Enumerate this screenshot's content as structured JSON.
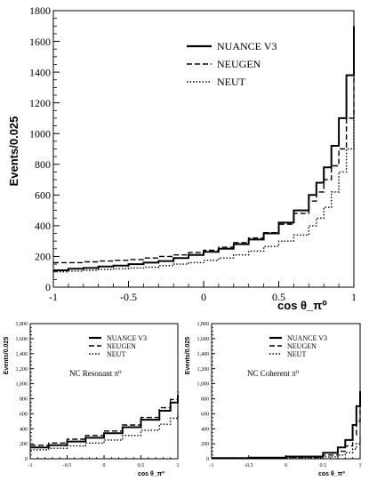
{
  "chart_data": [
    {
      "type": "line",
      "xlabel": "cos θ_π⁰",
      "ylabel": "Events/0.025",
      "xlim": [
        -1,
        1
      ],
      "ylim": [
        0,
        1800
      ],
      "xticks": [
        -1,
        -0.5,
        0,
        0.5,
        1
      ],
      "xtick_labels": [
        "-1",
        "-0.5",
        "0",
        "0.5",
        "1"
      ],
      "yticks": [
        0,
        200,
        400,
        600,
        800,
        1000,
        1200,
        1400,
        1600,
        1800
      ],
      "ytick_labels": [
        "0",
        "200",
        "400",
        "600",
        "800",
        "1000",
        "1200",
        "1400",
        "1600",
        "1800"
      ],
      "legend_position": "top-right",
      "series": [
        {
          "name": "NUANCE V3",
          "style": "solid",
          "color": "#000000",
          "x": [
            -1,
            -0.9,
            -0.8,
            -0.7,
            -0.6,
            -0.5,
            -0.4,
            -0.3,
            -0.2,
            -0.1,
            0,
            0.1,
            0.2,
            0.3,
            0.4,
            0.5,
            0.6,
            0.7,
            0.75,
            0.8,
            0.85,
            0.9,
            0.95,
            1
          ],
          "values": [
            110,
            120,
            125,
            135,
            140,
            150,
            160,
            170,
            190,
            210,
            230,
            250,
            280,
            310,
            350,
            420,
            500,
            600,
            680,
            780,
            920,
            1100,
            1380,
            1700
          ]
        },
        {
          "name": "NEUGEN",
          "style": "dashed",
          "color": "#000000",
          "x": [
            -1,
            -0.9,
            -0.8,
            -0.7,
            -0.6,
            -0.5,
            -0.4,
            -0.3,
            -0.2,
            -0.1,
            0,
            0.1,
            0.2,
            0.3,
            0.4,
            0.5,
            0.6,
            0.7,
            0.75,
            0.8,
            0.85,
            0.9,
            0.95,
            1
          ],
          "values": [
            160,
            160,
            165,
            170,
            175,
            180,
            190,
            200,
            210,
            225,
            240,
            260,
            290,
            320,
            355,
            410,
            480,
            560,
            620,
            700,
            790,
            900,
            1100,
            1380
          ]
        },
        {
          "name": "NEUT",
          "style": "dotted",
          "color": "#000000",
          "x": [
            -1,
            -0.9,
            -0.8,
            -0.7,
            -0.6,
            -0.5,
            -0.4,
            -0.3,
            -0.2,
            -0.1,
            0,
            0.1,
            0.2,
            0.3,
            0.4,
            0.5,
            0.6,
            0.7,
            0.75,
            0.8,
            0.85,
            0.9,
            0.95,
            1
          ],
          "values": [
            100,
            105,
            110,
            115,
            120,
            125,
            130,
            140,
            150,
            160,
            175,
            190,
            210,
            235,
            265,
            300,
            340,
            400,
            450,
            520,
            620,
            750,
            900,
            1150
          ]
        }
      ]
    },
    {
      "type": "line",
      "xlabel": "cos θ_π⁰",
      "ylabel": "Events/0.025",
      "annotation": "NC Resonant π⁰",
      "xlim": [
        -1,
        1
      ],
      "ylim": [
        0,
        1800
      ],
      "xtick_labels": [
        "-1",
        "-0.5",
        "0",
        "0.5",
        "1"
      ],
      "ytick_labels": [
        "0",
        "200",
        "400",
        "600",
        "800",
        "1,000",
        "1,200",
        "1,400",
        "1,600",
        "1,800"
      ],
      "legend_position": "top-right",
      "series": [
        {
          "name": "NUANCE V3",
          "style": "solid",
          "color": "#000000",
          "x": [
            -1,
            -0.75,
            -0.5,
            -0.25,
            0,
            0.25,
            0.5,
            0.75,
            0.9,
            1
          ],
          "values": [
            150,
            180,
            230,
            280,
            340,
            420,
            520,
            640,
            750,
            850
          ]
        },
        {
          "name": "NEUGEN",
          "style": "dashed",
          "color": "#000000",
          "x": [
            -1,
            -0.75,
            -0.5,
            -0.25,
            0,
            0.25,
            0.5,
            0.75,
            0.9,
            1
          ],
          "values": [
            180,
            210,
            260,
            310,
            370,
            450,
            550,
            680,
            790,
            900
          ]
        },
        {
          "name": "NEUT",
          "style": "dotted",
          "color": "#000000",
          "x": [
            -1,
            -0.75,
            -0.5,
            -0.25,
            0,
            0.25,
            0.5,
            0.75,
            0.9,
            1
          ],
          "values": [
            120,
            140,
            170,
            210,
            250,
            310,
            380,
            460,
            540,
            620
          ]
        }
      ]
    },
    {
      "type": "line",
      "xlabel": "cos θ_π⁰",
      "ylabel": "Events/0.025",
      "annotation": "NC Coherent π⁰",
      "xlim": [
        -1,
        1
      ],
      "ylim": [
        0,
        1800
      ],
      "xtick_labels": [
        "-1",
        "-0.5",
        "0",
        "0.5",
        "1"
      ],
      "ytick_labels": [
        "0",
        "200",
        "400",
        "600",
        "800",
        "1,000",
        "1,200",
        "1,400",
        "1,600",
        "1,800"
      ],
      "legend_position": "top-right",
      "series": [
        {
          "name": "NUANCE V3",
          "style": "solid",
          "color": "#000000",
          "x": [
            -1,
            -0.5,
            0,
            0.5,
            0.7,
            0.8,
            0.9,
            0.95,
            1
          ],
          "values": [
            10,
            15,
            30,
            80,
            150,
            250,
            450,
            700,
            900
          ]
        },
        {
          "name": "NEUGEN",
          "style": "dashed",
          "color": "#000000",
          "x": [
            -1,
            -0.5,
            0,
            0.5,
            0.7,
            0.8,
            0.9,
            0.95,
            1
          ],
          "values": [
            5,
            10,
            20,
            50,
            100,
            170,
            320,
            500,
            650
          ]
        },
        {
          "name": "NEUT",
          "style": "dotted",
          "color": "#000000",
          "x": [
            -1,
            -0.5,
            0,
            0.5,
            0.7,
            0.8,
            0.9,
            0.95,
            1
          ],
          "values": [
            3,
            5,
            10,
            25,
            50,
            80,
            130,
            200,
            300
          ]
        }
      ]
    }
  ]
}
